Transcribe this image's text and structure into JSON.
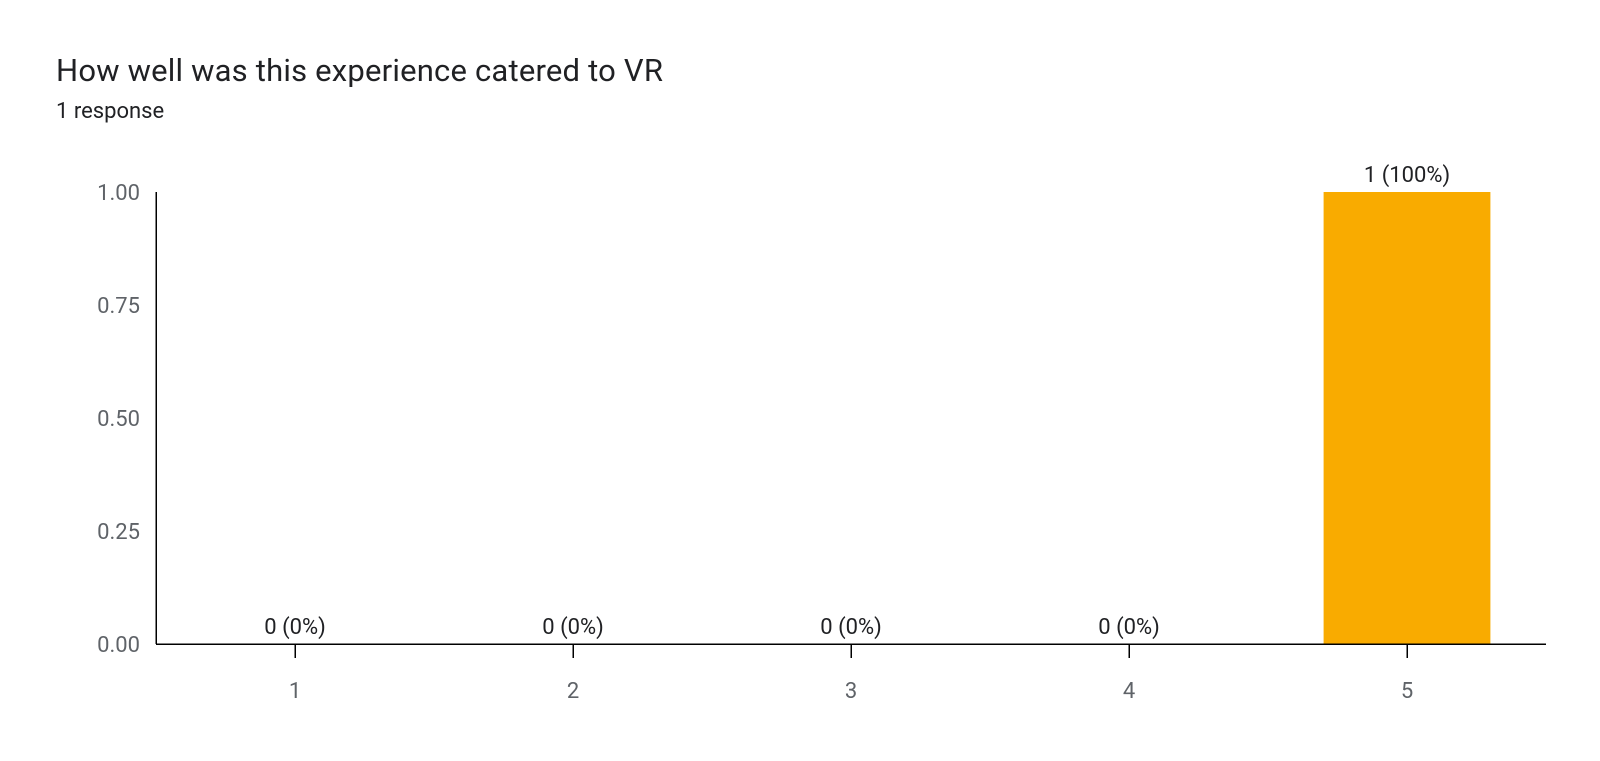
{
  "header": {
    "title": "How well was this experience catered to VR",
    "subtitle": "1 response"
  },
  "chart": {
    "type": "bar",
    "categories": [
      "1",
      "2",
      "3",
      "4",
      "5"
    ],
    "values": [
      0,
      0,
      0,
      0,
      1
    ],
    "value_labels": [
      "0 (0%)",
      "0 (0%)",
      "0 (0%)",
      "0 (0%)",
      "1 (100%)"
    ],
    "bar_color": "#f9ab00",
    "ylim": [
      0,
      1
    ],
    "ytick_step": 0.25,
    "ytick_labels": [
      "0.00",
      "0.25",
      "0.50",
      "0.75",
      "1.00"
    ],
    "background_color": "#ffffff",
    "axis_color": "#000000",
    "tick_label_color": "#5f6368",
    "value_label_color": "#202124",
    "label_fontsize": 22,
    "title_fontsize": 31,
    "bar_width": 0.6,
    "x_tick_length": 14,
    "y_axis_label_gap": 16,
    "x_axis_label_gap": 40,
    "value_label_gap": 10
  }
}
